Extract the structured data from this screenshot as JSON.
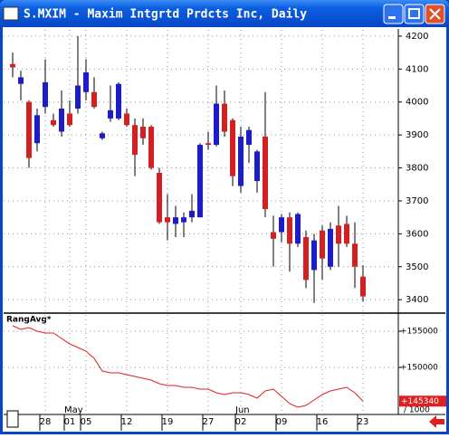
{
  "window": {
    "title": "S.MXIM - Maxim Intgrtd Prdcts Inc, Daily"
  },
  "chart_data": [
    {
      "type": "candlestick",
      "categories": [
        null,
        null,
        null,
        null,
        "28",
        null,
        null,
        "01",
        null,
        "05",
        null,
        null,
        null,
        null,
        "12",
        null,
        null,
        null,
        null,
        "19",
        null,
        null,
        null,
        null,
        "27",
        null,
        null,
        null,
        "02",
        null,
        null,
        null,
        null,
        "09",
        null,
        null,
        null,
        null,
        "16",
        null,
        null,
        null,
        null,
        "23"
      ],
      "months": [
        {
          "label": "May",
          "index": 7
        },
        {
          "label": "Jun",
          "index": 28
        }
      ],
      "open": [
        4115,
        4055,
        4000,
        3875,
        3985,
        3945,
        3910,
        3965,
        3980,
        4030,
        4030,
        3890,
        3950,
        3950,
        3965,
        3930,
        3925,
        3925,
        3785,
        3650,
        3630,
        3635,
        3650,
        3650,
        3875,
        3870,
        3995,
        3945,
        3745,
        3870,
        3760,
        3895,
        3605,
        3605,
        3650,
        3570,
        3590,
        3490,
        3610,
        3500,
        3625,
        3630,
        3570,
        3470
      ],
      "high": [
        4150,
        4095,
        4005,
        3980,
        4130,
        3965,
        4035,
        4005,
        4200,
        4130,
        4075,
        3910,
        4050,
        4060,
        3980,
        3950,
        3950,
        3930,
        3800,
        3720,
        3685,
        3665,
        3720,
        3875,
        3910,
        4050,
        4035,
        3950,
        3925,
        3925,
        3855,
        4030,
        3655,
        3660,
        3665,
        3665,
        3610,
        3600,
        3625,
        3635,
        3685,
        3655,
        3635,
        3505
      ],
      "low": [
        4075,
        4005,
        3800,
        3850,
        3965,
        3925,
        3895,
        3925,
        3965,
        4005,
        3980,
        3885,
        3940,
        3945,
        3925,
        3775,
        3870,
        3795,
        3630,
        3580,
        3590,
        3590,
        3635,
        3650,
        3855,
        3865,
        3895,
        3745,
        3725,
        3815,
        3725,
        3650,
        3500,
        3575,
        3485,
        3560,
        3435,
        3390,
        3460,
        3490,
        3500,
        3560,
        3435,
        3395
      ],
      "close": [
        4105,
        4075,
        3830,
        3960,
        4060,
        3930,
        3980,
        3930,
        4050,
        4090,
        3985,
        3905,
        3975,
        4055,
        3930,
        3840,
        3890,
        3800,
        3635,
        3635,
        3650,
        3650,
        3670,
        3870,
        3870,
        3995,
        3910,
        3775,
        3895,
        3915,
        3850,
        3675,
        3585,
        3650,
        3570,
        3660,
        3460,
        3580,
        3525,
        3615,
        3570,
        3570,
        3500,
        3410
      ],
      "up_color": "#1c1cc8",
      "down_color": "#d42020",
      "ylim": [
        3362,
        4219
      ],
      "yticks": [
        3400,
        3500,
        3600,
        3700,
        3800,
        3900,
        4000,
        4100,
        4200
      ],
      "grid": true
    },
    {
      "type": "line",
      "title": "RangAvg*",
      "values": [
        155750,
        155250,
        155500,
        155000,
        154750,
        154750,
        154000,
        153250,
        152750,
        152250,
        151250,
        149500,
        149250,
        149250,
        149000,
        148750,
        148500,
        148250,
        147750,
        147500,
        147500,
        147250,
        147250,
        147000,
        147000,
        146500,
        146250,
        146500,
        146500,
        146250,
        145750,
        146750,
        147000,
        146000,
        145000,
        144500,
        144750,
        145500,
        146250,
        146750,
        147000,
        147250,
        146500,
        145340
      ],
      "last_value_label": "+145340",
      "color": "#e02020",
      "ylim": [
        143500,
        157250
      ],
      "yticks": [
        {
          "value": 150000,
          "label": "+150000"
        },
        {
          "value": 155000,
          "label": "+155000"
        }
      ],
      "scale_note": "/ 1000",
      "grid": true
    }
  ]
}
